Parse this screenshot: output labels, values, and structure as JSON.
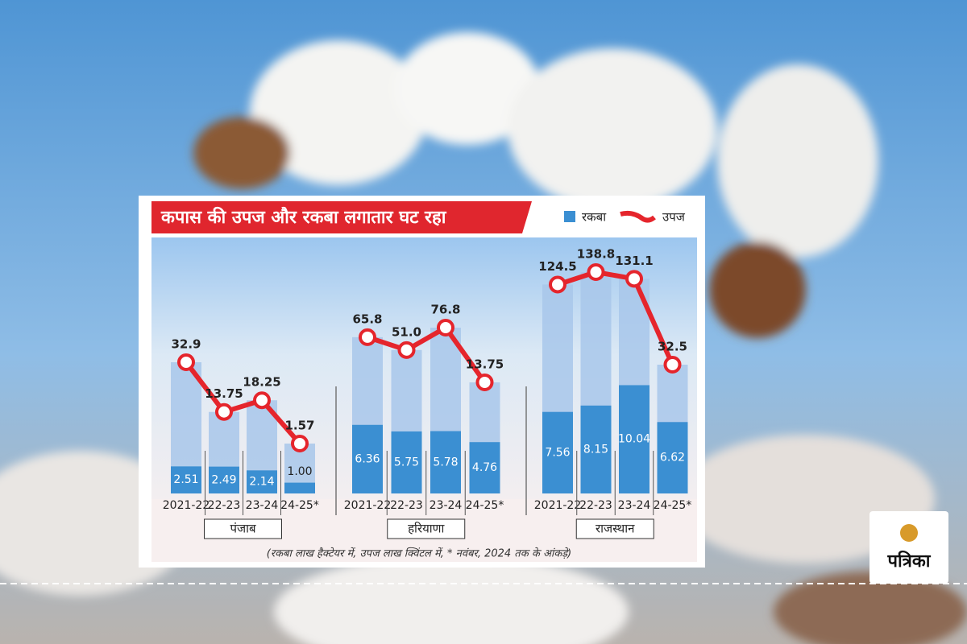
{
  "chart_data": {
    "type": "bar-line",
    "title": "कपास की उपज और रकबा लगातार घट रहा",
    "footnote": "(रकबा लाख हैक्टेयर में, उपज लाख क्विंटल में, * नवंबर, 2024 तक के आंकड़े)",
    "panels": [
      {
        "name": "पंजाब",
        "categories": [
          "2021-22",
          "22-23",
          "23-24",
          "24-25*"
        ],
        "series": [
          {
            "name": "रकबा",
            "type": "bar",
            "color": "#3b8fd2",
            "values": [
              2.51,
              2.49,
              2.14,
              1.0
            ],
            "value_labels": [
              "2.51",
              "2.49",
              "2.14",
              "1.00"
            ]
          },
          {
            "name": "उपज",
            "type": "line",
            "color": "#e5252c",
            "values": [
              32.9,
              13.75,
              18.25,
              1.57
            ],
            "value_labels": [
              "32.9",
              "13.75",
              "18.25",
              "1.57"
            ]
          }
        ]
      },
      {
        "name": "हरियाणा",
        "categories": [
          "2021-22",
          "22-23",
          "23-24",
          "24-25*"
        ],
        "series": [
          {
            "name": "रकबा",
            "type": "bar",
            "color": "#3b8fd2",
            "values": [
              6.36,
              5.75,
              5.78,
              4.76
            ],
            "value_labels": [
              "6.36",
              "5.75",
              "5.78",
              "4.76"
            ]
          },
          {
            "name": "उपज",
            "type": "line",
            "color": "#e5252c",
            "values": [
              65.8,
              51.0,
              76.8,
              13.75
            ],
            "value_labels": [
              "65.8",
              "51.0",
              "76.8",
              "13.75"
            ]
          }
        ]
      },
      {
        "name": "राजस्थान",
        "categories": [
          "2021-22",
          "22-23",
          "23-24",
          "24-25*"
        ],
        "series": [
          {
            "name": "रकबा",
            "type": "bar",
            "color": "#3b8fd2",
            "values": [
              7.56,
              8.15,
              10.04,
              6.62
            ],
            "value_labels": [
              "7.56",
              "8.15",
              "10.04",
              "6.62"
            ]
          },
          {
            "name": "उपज",
            "type": "line",
            "color": "#e5252c",
            "values": [
              124.5,
              138.8,
              131.1,
              32.5
            ],
            "value_labels": [
              "124.5",
              "138.8",
              "131.1",
              "32.5"
            ]
          }
        ]
      }
    ]
  },
  "brand": "पत्रिका"
}
